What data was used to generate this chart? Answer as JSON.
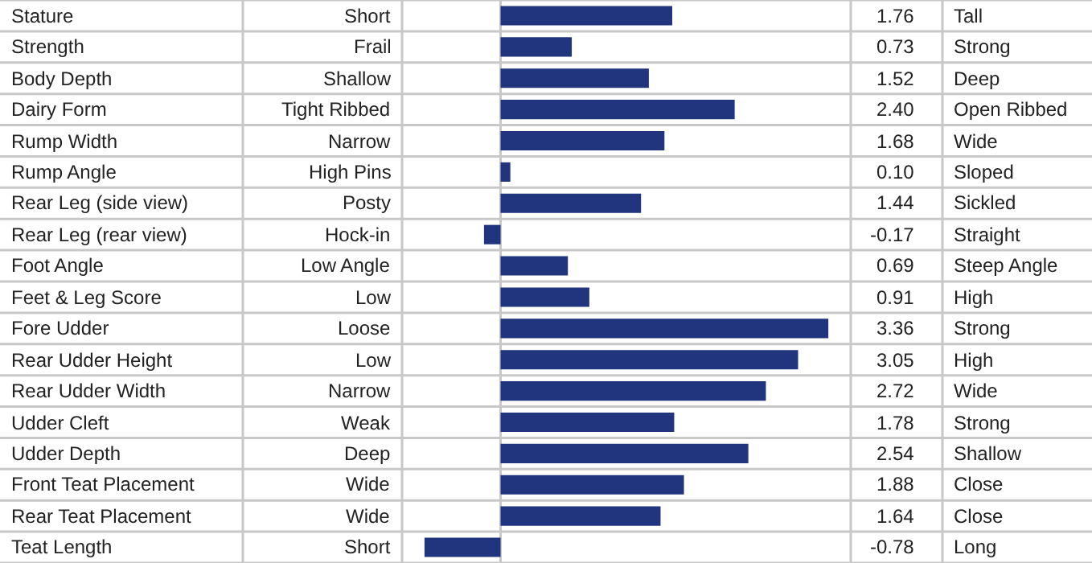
{
  "chart_data": {
    "type": "bar",
    "orientation": "horizontal",
    "color": "#21357f",
    "tick_labels": false,
    "categories": [
      "Stature",
      "Strength",
      "Body Depth",
      "Dairy Form",
      "Rump Width",
      "Rump Angle",
      "Rear Leg (side view)",
      "Rear Leg (rear view)",
      "Foot Angle",
      "Feet & Leg Score",
      "Fore Udder",
      "Rear Udder Height",
      "Rear Udder Width",
      "Udder Cleft",
      "Udder Depth",
      "Front Teat Placement",
      "Rear Teat Placement",
      "Teat Length"
    ],
    "values": [
      1.76,
      0.73,
      1.52,
      2.4,
      1.68,
      0.1,
      1.44,
      -0.17,
      0.69,
      0.91,
      3.36,
      3.05,
      2.72,
      1.78,
      2.54,
      1.88,
      1.64,
      -0.78
    ],
    "value_labels": [
      "1.76",
      "0.73",
      "1.52",
      "2.40",
      "1.68",
      "0.10",
      "1.44",
      "-0.17",
      "0.69",
      "0.91",
      "3.36",
      "3.05",
      "2.72",
      "1.78",
      "2.54",
      "1.88",
      "1.64",
      "-0.78"
    ],
    "annotations": [
      "Short",
      "Tall",
      "Frail",
      "Strong",
      "Shallow",
      "Deep",
      "Tight Ribbed",
      "Open Ribbed",
      "Narrow",
      "Wide",
      "High Pins",
      "Sloped",
      "Posty",
      "Sickled",
      "Hock-in",
      "Straight",
      "Low Angle",
      "Steep Angle",
      "Low",
      "High",
      "Loose",
      "Strong",
      "Low",
      "High",
      "Narrow",
      "Wide",
      "Weak",
      "Strong",
      "Deep",
      "Shallow",
      "Wide",
      "Close",
      "Wide",
      "Close",
      "Short",
      "Long"
    ]
  }
}
